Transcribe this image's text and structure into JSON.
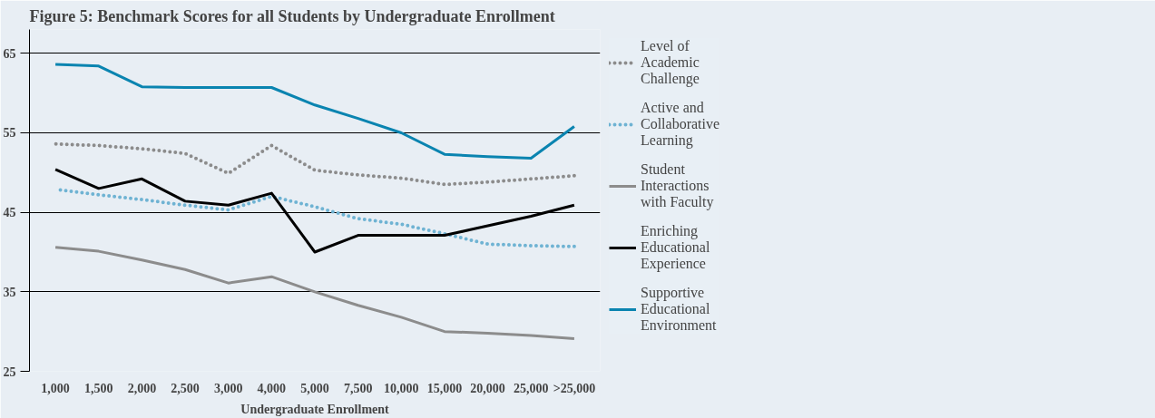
{
  "chart_data": {
    "type": "line",
    "title": "Figure 5: Benchmark Scores for all Students by Undergraduate Enrollment",
    "xlabel": "Undergraduate Enrollment",
    "categories": [
      "1,000",
      "1,500",
      "2,000",
      "2,500",
      "3,000",
      "4,000",
      "5,000",
      "7,500",
      "10,000",
      "15,000",
      "20,000",
      "25,000",
      ">25,000"
    ],
    "ylim": [
      25,
      68
    ],
    "yticks": [
      25,
      35,
      45,
      55,
      65
    ],
    "grid": "y",
    "legend": "right",
    "marker": "none",
    "series": [
      {
        "name": "Level of Academic Challenge",
        "color": "#8c8c8c",
        "line_style": "dotted",
        "values": [
          53.6,
          53.4,
          53.0,
          52.4,
          49.9,
          53.4,
          50.3,
          49.7,
          49.3,
          48.5,
          48.8,
          49.2,
          49.6
        ]
      },
      {
        "name": "Active and Collaborative Learning",
        "color": "#6fb3d3",
        "line_style": "dotted",
        "values": [
          47.9,
          47.2,
          46.6,
          45.9,
          45.3,
          47.0,
          45.7,
          44.2,
          43.5,
          42.3,
          41.0,
          40.8,
          40.7
        ]
      },
      {
        "name": "Student Interactions with Faculty",
        "color": "#8c8c8c",
        "line_style": "solid",
        "values": [
          40.6,
          40.1,
          39.0,
          37.8,
          36.1,
          36.9,
          35.0,
          33.3,
          31.8,
          30.0,
          29.8,
          29.5,
          29.1
        ]
      },
      {
        "name": "Enriching Educational Experience",
        "color": "#000000",
        "line_style": "solid",
        "values": [
          50.4,
          48.0,
          49.2,
          46.4,
          45.9,
          47.4,
          40.0,
          42.1,
          42.1,
          42.1,
          43.3,
          44.5,
          45.9
        ]
      },
      {
        "name": "Supportive Educational Environment",
        "color": "#0a84b0",
        "line_style": "solid",
        "values": [
          63.6,
          63.4,
          60.8,
          60.7,
          60.7,
          60.7,
          58.5,
          56.8,
          55.0,
          52.3,
          52.0,
          51.8,
          55.8
        ]
      }
    ]
  }
}
